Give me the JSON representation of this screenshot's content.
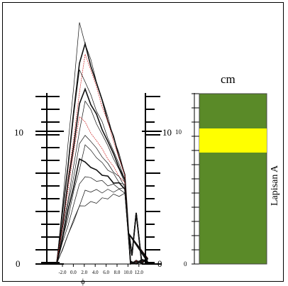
{
  "left_scale": {
    "top_label": "10",
    "bottom_label": "0"
  },
  "middle_scale": {
    "top_label": "10",
    "top_label_small": "10",
    "bottom_label": "0",
    "bottom_label_small": "0"
  },
  "x_axis": {
    "ticks": [
      "-2.0",
      "0.0",
      "2.0",
      "4.0",
      "6.0",
      "8.0",
      "10.0",
      "12.0"
    ],
    "label": "ϕ"
  },
  "column": {
    "unit": "cm",
    "layer_label": "Lapisan A",
    "colors": {
      "main": "#5a8a28",
      "band": "#ffff00",
      "red_curve": "#cc2222"
    }
  }
}
